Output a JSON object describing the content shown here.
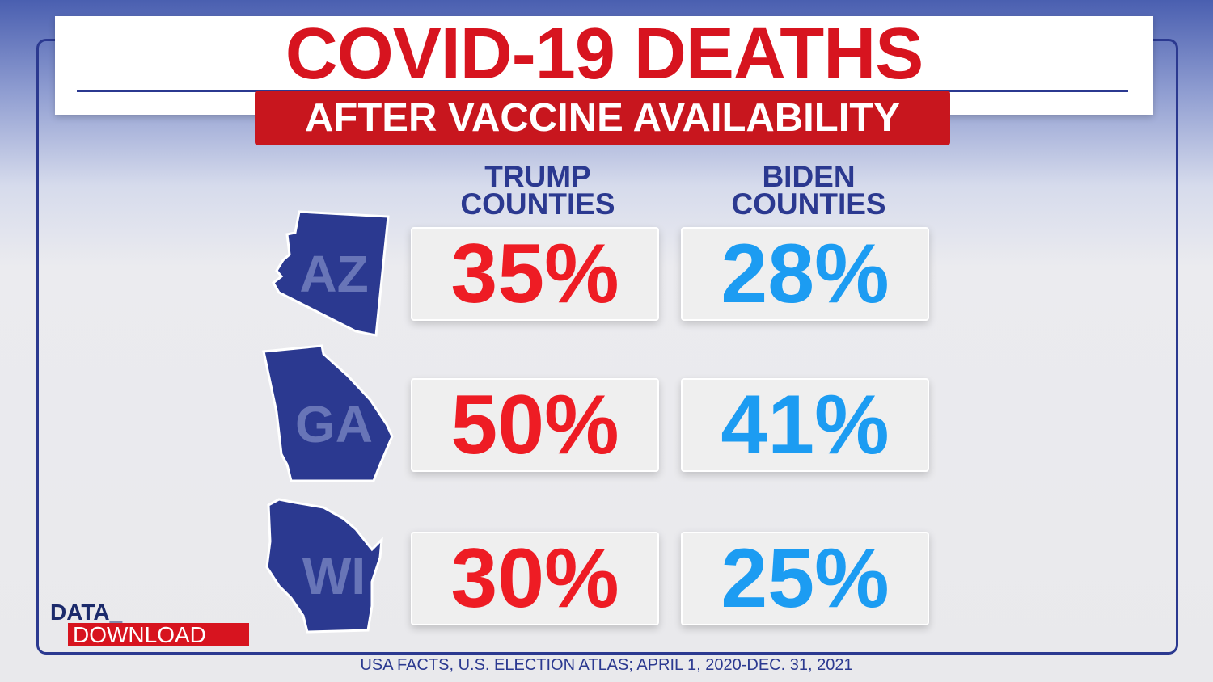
{
  "header": {
    "title": "COVID-19 DEATHS",
    "subtitle": "AFTER VACCINE AVAILABILITY"
  },
  "table": {
    "columns": [
      "TRUMP COUNTIES",
      "BIDEN COUNTIES"
    ],
    "rows": [
      {
        "state": "AZ",
        "cells": [
          "35%",
          "28%"
        ]
      },
      {
        "state": "GA",
        "cells": [
          "50%",
          "41%"
        ]
      },
      {
        "state": "WI",
        "cells": [
          "30%",
          "25%"
        ]
      }
    ]
  },
  "logo": {
    "line1": "DATA_",
    "line2": "DOWNLOAD"
  },
  "source": "USA FACTS, U.S. ELECTION ATLAS; APRIL 1, 2020-DEC. 31, 2021"
}
